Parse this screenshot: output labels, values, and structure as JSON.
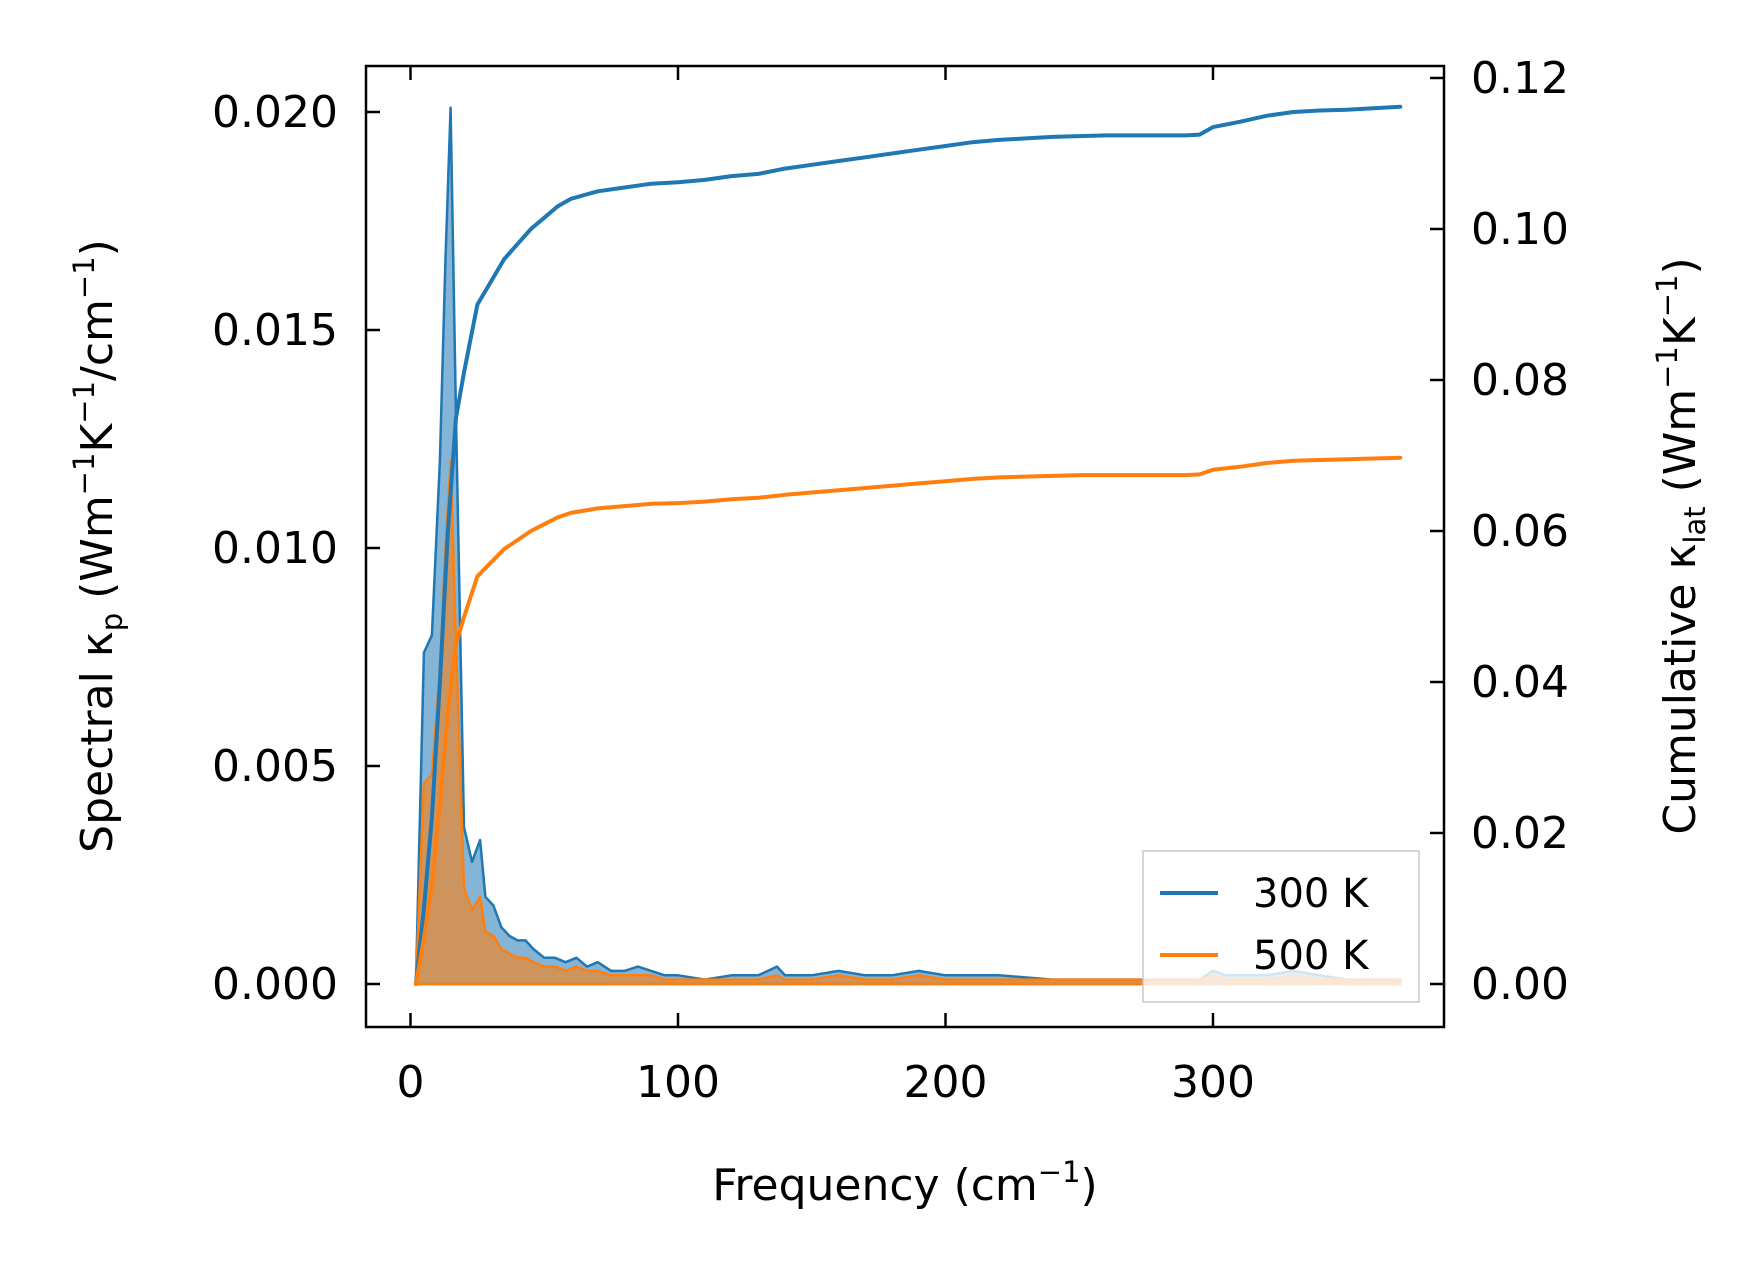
{
  "chart_data": {
    "type": "line",
    "title": "",
    "xlabel": {
      "base": "Frequency (cm",
      "sup": "−1",
      "tail": ")"
    },
    "ylabel_left": {
      "pre": "Spectral κ",
      "sub": "p",
      "mid": " (Wm",
      "sup1": "−1",
      "k": "K",
      "sup2": "−1",
      "slash": "/cm",
      "sup3": "−1",
      "tail": ")"
    },
    "ylabel_right": {
      "pre": "Cumulative κ",
      "sub": "lat",
      "mid": " (Wm",
      "sup1": "−1",
      "k": "K",
      "sup2": "−1",
      "tail": ")"
    },
    "xlim": [
      -15,
      388
    ],
    "ylim_left": [
      -0.00097,
      0.0211
    ],
    "ylim_right": [
      -0.0057,
      0.1223
    ],
    "xticks": [
      0,
      100,
      200,
      300
    ],
    "xtick_labels": [
      "0",
      "100",
      "200",
      "300"
    ],
    "yticks_left": [
      0.0,
      0.005,
      0.01,
      0.015,
      0.02
    ],
    "ytick_labels_left": [
      "0.000",
      "0.005",
      "0.010",
      "0.015",
      "0.020"
    ],
    "yticks_right": [
      0.0,
      0.02,
      0.04,
      0.06,
      0.08,
      0.1,
      0.12
    ],
    "ytick_labels_right": [
      "0.00",
      "0.02",
      "0.04",
      "0.06",
      "0.08",
      "0.10",
      "0.12"
    ],
    "grid": false,
    "legend_position": "bottom-right",
    "series": [
      {
        "name": "300 K",
        "color": "#1f77b4",
        "spectral": {
          "x": [
            2,
            5,
            8,
            11,
            13,
            15,
            17,
            20,
            23,
            26,
            28,
            31,
            34,
            37,
            40,
            43,
            46,
            50,
            54,
            58,
            62,
            66,
            70,
            75,
            80,
            85,
            90,
            95,
            100,
            110,
            120,
            130,
            137,
            140,
            150,
            160,
            170,
            180,
            190,
            200,
            220,
            240,
            260,
            280,
            295,
            300,
            305,
            310,
            320,
            330,
            340,
            350,
            360,
            370
          ],
          "y": [
            0.0,
            0.0076,
            0.008,
            0.012,
            0.0165,
            0.0201,
            0.013,
            0.0036,
            0.0028,
            0.0033,
            0.002,
            0.0018,
            0.0013,
            0.0011,
            0.001,
            0.001,
            0.0008,
            0.0006,
            0.0006,
            0.0005,
            0.0006,
            0.0004,
            0.0005,
            0.0003,
            0.0003,
            0.0004,
            0.0003,
            0.0002,
            0.0002,
            0.0001,
            0.0002,
            0.0002,
            0.0004,
            0.0002,
            0.0002,
            0.0003,
            0.0002,
            0.0002,
            0.0003,
            0.0002,
            0.0002,
            0.0001,
            0.0001,
            0.0001,
            0.0001,
            0.0003,
            0.0002,
            0.0002,
            0.0002,
            0.0003,
            0.0002,
            0.0001,
            0.0001,
            0.0001
          ]
        },
        "cumulative": {
          "x": [
            2,
            5,
            8,
            11,
            14,
            17,
            20,
            25,
            30,
            35,
            40,
            45,
            50,
            55,
            60,
            65,
            70,
            80,
            90,
            100,
            110,
            120,
            130,
            140,
            150,
            160,
            170,
            180,
            190,
            200,
            210,
            220,
            230,
            240,
            250,
            260,
            270,
            280,
            290,
            295,
            300,
            310,
            320,
            330,
            340,
            350,
            360,
            370
          ],
          "y": [
            0.0,
            0.01,
            0.022,
            0.04,
            0.06,
            0.075,
            0.081,
            0.09,
            0.093,
            0.096,
            0.098,
            0.1,
            0.1015,
            0.103,
            0.104,
            0.1045,
            0.105,
            0.1055,
            0.106,
            0.1062,
            0.1065,
            0.107,
            0.1073,
            0.108,
            0.1085,
            0.109,
            0.1095,
            0.11,
            0.1105,
            0.111,
            0.1115,
            0.1118,
            0.112,
            0.1122,
            0.1123,
            0.1124,
            0.1124,
            0.1124,
            0.1124,
            0.1125,
            0.1135,
            0.1142,
            0.115,
            0.1155,
            0.1157,
            0.1158,
            0.116,
            0.1162
          ]
        }
      },
      {
        "name": "500 K",
        "color": "#ff7f0e",
        "spectral": {
          "x": [
            2,
            5,
            8,
            11,
            13,
            15,
            17,
            20,
            23,
            26,
            28,
            31,
            34,
            37,
            40,
            43,
            46,
            50,
            54,
            58,
            62,
            66,
            70,
            75,
            80,
            85,
            90,
            95,
            100,
            110,
            120,
            130,
            137,
            140,
            150,
            160,
            170,
            180,
            190,
            200,
            220,
            240,
            260,
            280,
            295,
            300,
            305,
            310,
            320,
            330,
            340,
            350,
            360,
            370
          ],
          "y": [
            0.0,
            0.0046,
            0.0048,
            0.0072,
            0.0099,
            0.012,
            0.0078,
            0.0022,
            0.0017,
            0.002,
            0.0012,
            0.0011,
            0.0008,
            0.0007,
            0.0006,
            0.0006,
            0.0005,
            0.0004,
            0.0004,
            0.0003,
            0.0004,
            0.0003,
            0.0003,
            0.0002,
            0.0002,
            0.0002,
            0.0002,
            0.0001,
            0.0001,
            0.0001,
            0.0001,
            0.0001,
            0.0002,
            0.0001,
            0.0001,
            0.0002,
            0.0001,
            0.0001,
            0.0002,
            0.0001,
            0.0001,
            0.0001,
            0.0001,
            0.0001,
            0.0001,
            0.0002,
            0.0001,
            0.0001,
            0.0001,
            0.0002,
            0.0001,
            0.0001,
            0.0001,
            0.0001
          ]
        },
        "cumulative": {
          "x": [
            2,
            5,
            8,
            11,
            14,
            17,
            20,
            25,
            30,
            35,
            40,
            45,
            50,
            55,
            60,
            65,
            70,
            80,
            90,
            100,
            110,
            120,
            130,
            140,
            150,
            160,
            170,
            180,
            190,
            200,
            210,
            220,
            230,
            240,
            250,
            260,
            270,
            280,
            290,
            295,
            300,
            310,
            320,
            330,
            340,
            350,
            360,
            370
          ],
          "y": [
            0.0,
            0.006,
            0.013,
            0.024,
            0.036,
            0.045,
            0.0486,
            0.054,
            0.0558,
            0.0576,
            0.0588,
            0.06,
            0.0609,
            0.0618,
            0.0624,
            0.0627,
            0.063,
            0.0633,
            0.0636,
            0.0637,
            0.0639,
            0.0642,
            0.0644,
            0.0648,
            0.0651,
            0.0654,
            0.0657,
            0.066,
            0.0663,
            0.0666,
            0.0669,
            0.0671,
            0.0672,
            0.0673,
            0.0674,
            0.0674,
            0.0674,
            0.0674,
            0.0674,
            0.0675,
            0.0681,
            0.0685,
            0.069,
            0.0693,
            0.0694,
            0.0695,
            0.0696,
            0.0697
          ]
        }
      }
    ]
  }
}
